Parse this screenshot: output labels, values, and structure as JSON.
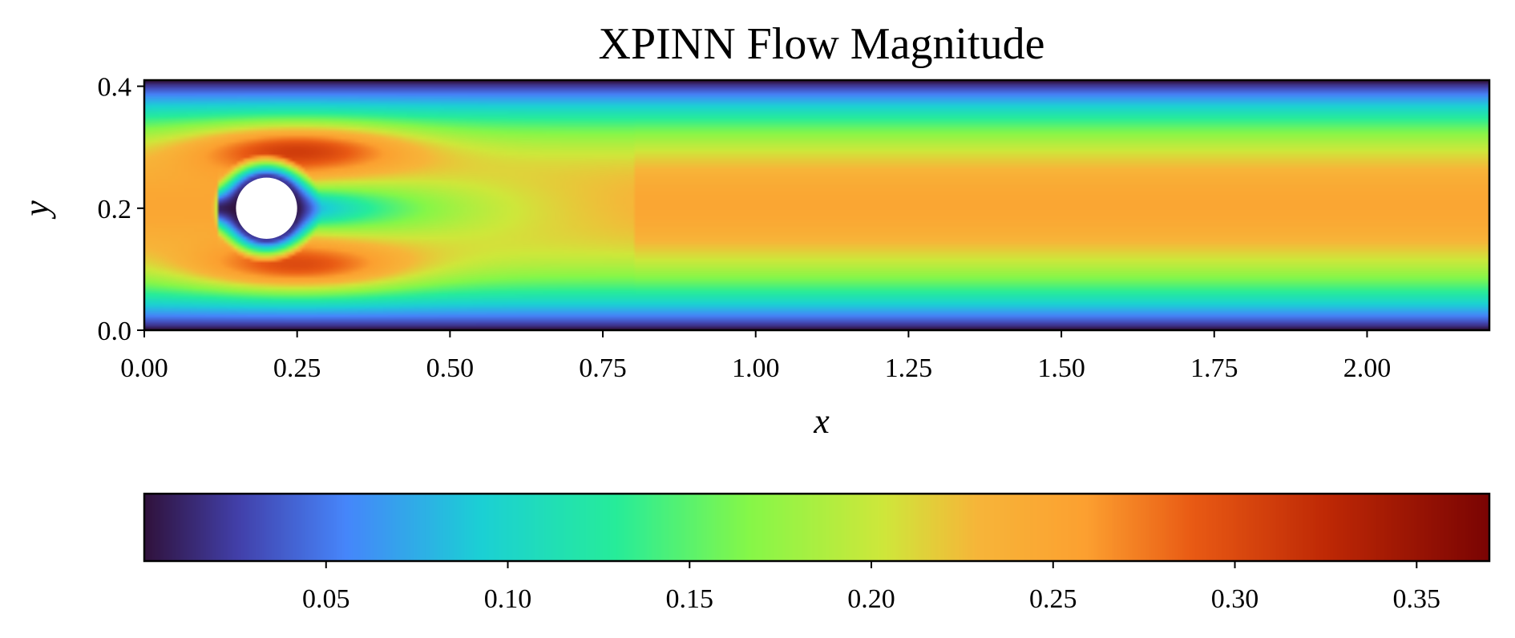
{
  "chart_data": {
    "type": "heatmap",
    "title": "XPINN Flow Magnitude",
    "xlabel": "x",
    "ylabel": "y",
    "xlim": [
      0.0,
      2.2
    ],
    "ylim": [
      0.0,
      0.41
    ],
    "x_ticks": [
      0.0,
      0.25,
      0.5,
      0.75,
      1.0,
      1.25,
      1.5,
      1.75,
      2.0
    ],
    "x_tick_labels": [
      "0.00",
      "0.25",
      "0.50",
      "0.75",
      "1.00",
      "1.25",
      "1.50",
      "1.75",
      "2.00"
    ],
    "y_ticks": [
      0.0,
      0.2,
      0.4
    ],
    "y_tick_labels": [
      "0.0",
      "0.2",
      "0.4"
    ],
    "colormap": "turbo",
    "color_range": [
      0.0,
      0.37
    ],
    "colorbar": {
      "orientation": "horizontal",
      "placement": "bottom",
      "ticks": [
        0.05,
        0.1,
        0.15,
        0.2,
        0.25,
        0.3,
        0.35
      ],
      "tick_labels": [
        "0.05",
        "0.10",
        "0.15",
        "0.20",
        "0.25",
        "0.30",
        "0.35"
      ]
    },
    "obstacle": {
      "shape": "circle",
      "center": [
        0.2,
        0.2
      ],
      "radius": 0.05
    },
    "subdomain_interface_x": 0.8,
    "max_velocity": 0.25
  }
}
